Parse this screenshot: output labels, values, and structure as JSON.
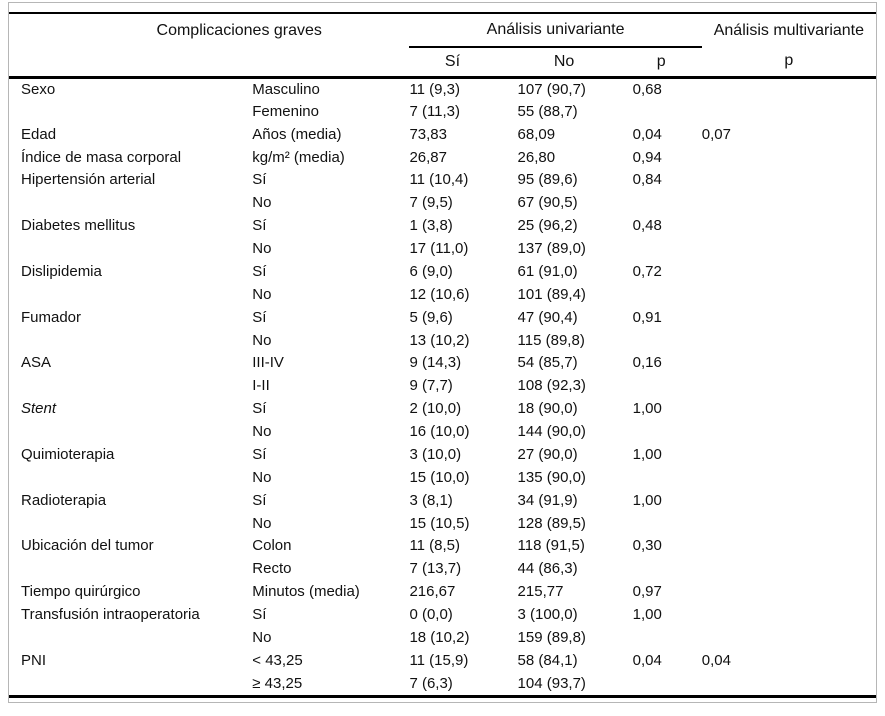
{
  "table": {
    "header": {
      "group_left": "Complicaciones graves",
      "group_univariate": "Análisis univariante",
      "group_multivariate": "Análisis multivariante",
      "sub_si": "Sí",
      "sub_no": "No",
      "sub_p_univariate": "p",
      "sub_p_multivariate": "p"
    },
    "rows": [
      {
        "variable": "Sexo",
        "category": "Masculino",
        "si": "11 (9,3)",
        "no": "107 (90,7)",
        "p_univariate": "0,68",
        "p_multivariate": ""
      },
      {
        "variable": "",
        "category": "Femenino",
        "si": "7 (11,3)",
        "no": "55 (88,7)",
        "p_univariate": "",
        "p_multivariate": ""
      },
      {
        "variable": "Edad",
        "category": "Años (media)",
        "si": "73,83",
        "no": "68,09",
        "p_univariate": "0,04",
        "p_multivariate": "0,07"
      },
      {
        "variable": "Índice de masa corporal",
        "category": "kg/m² (media)",
        "si": "26,87",
        "no": "26,80",
        "p_univariate": "0,94",
        "p_multivariate": ""
      },
      {
        "variable": "Hipertensión arterial",
        "category": "Sí",
        "si": "11 (10,4)",
        "no": "95 (89,6)",
        "p_univariate": "0,84",
        "p_multivariate": ""
      },
      {
        "variable": "",
        "category": "No",
        "si": "7 (9,5)",
        "no": "67 (90,5)",
        "p_univariate": "",
        "p_multivariate": ""
      },
      {
        "variable": "Diabetes mellitus",
        "category": "Sí",
        "si": "1 (3,8)",
        "no": "25 (96,2)",
        "p_univariate": "0,48",
        "p_multivariate": ""
      },
      {
        "variable": "",
        "category": "No",
        "si": "17 (11,0)",
        "no": "137 (89,0)",
        "p_univariate": "",
        "p_multivariate": ""
      },
      {
        "variable": "Dislipidemia",
        "category": "Sí",
        "si": "6 (9,0)",
        "no": "61 (91,0)",
        "p_univariate": "0,72",
        "p_multivariate": ""
      },
      {
        "variable": "",
        "category": "No",
        "si": "12 (10,6)",
        "no": "101 (89,4)",
        "p_univariate": "",
        "p_multivariate": ""
      },
      {
        "variable": "Fumador",
        "category": "Sí",
        "si": "5 (9,6)",
        "no": "47 (90,4)",
        "p_univariate": "0,91",
        "p_multivariate": ""
      },
      {
        "variable": "",
        "category": "No",
        "si": "13 (10,2)",
        "no": "115 (89,8)",
        "p_univariate": "",
        "p_multivariate": ""
      },
      {
        "variable": "ASA",
        "category": "III-IV",
        "si": "9 (14,3)",
        "no": "54 (85,7)",
        "p_univariate": "0,16",
        "p_multivariate": ""
      },
      {
        "variable": "",
        "category": "I-II",
        "si": "9 (7,7)",
        "no": "108 (92,3)",
        "p_univariate": "",
        "p_multivariate": ""
      },
      {
        "variable": "Stent",
        "variable_italic": true,
        "category": "Sí",
        "si": "2 (10,0)",
        "no": "18 (90,0)",
        "p_univariate": "1,00",
        "p_multivariate": ""
      },
      {
        "variable": "",
        "category": "No",
        "si": "16 (10,0)",
        "no": "144 (90,0)",
        "p_univariate": "",
        "p_multivariate": ""
      },
      {
        "variable": "Quimioterapia",
        "category": "Sí",
        "si": "3 (10,0)",
        "no": "27 (90,0)",
        "p_univariate": "1,00",
        "p_multivariate": ""
      },
      {
        "variable": "",
        "category": "No",
        "si": "15 (10,0)",
        "no": "135 (90,0)",
        "p_univariate": "",
        "p_multivariate": ""
      },
      {
        "variable": "Radioterapia",
        "category": "Sí",
        "si": "3 (8,1)",
        "no": "34 (91,9)",
        "p_univariate": "1,00",
        "p_multivariate": ""
      },
      {
        "variable": "",
        "category": "No",
        "si": "15 (10,5)",
        "no": "128 (89,5)",
        "p_univariate": "",
        "p_multivariate": ""
      },
      {
        "variable": "Ubicación del tumor",
        "category": "Colon",
        "si": "11 (8,5)",
        "no": "118 (91,5)",
        "p_univariate": "0,30",
        "p_multivariate": ""
      },
      {
        "variable": "",
        "category": "Recto",
        "si": "7 (13,7)",
        "no": "44 (86,3)",
        "p_univariate": "",
        "p_multivariate": ""
      },
      {
        "variable": "Tiempo quirúrgico",
        "category": "Minutos (media)",
        "si": "216,67",
        "no": "215,77",
        "p_univariate": "0,97",
        "p_multivariate": ""
      },
      {
        "variable": "Transfusión intraoperatoria",
        "category": "Sí",
        "si": "0 (0,0)",
        "no": "3 (100,0)",
        "p_univariate": "1,00",
        "p_multivariate": ""
      },
      {
        "variable": "",
        "category": "No",
        "si": "18 (10,2)",
        "no": "159 (89,8)",
        "p_univariate": "",
        "p_multivariate": ""
      },
      {
        "variable": "PNI",
        "category": "< 43,25",
        "si": "11 (15,9)",
        "no": "58 (84,1)",
        "p_univariate": "0,04",
        "p_multivariate": "0,04"
      },
      {
        "variable": "",
        "category": "≥ 43,25",
        "si": "7 (6,3)",
        "no": "104 (93,7)",
        "p_univariate": "",
        "p_multivariate": ""
      }
    ]
  }
}
